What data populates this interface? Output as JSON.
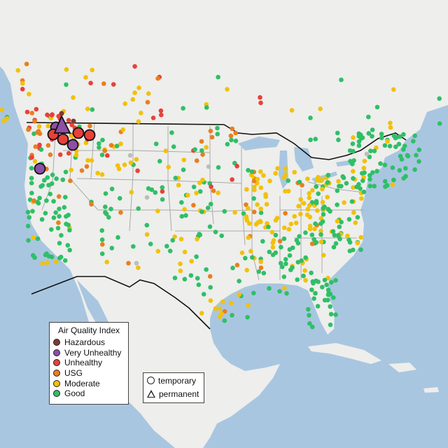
{
  "legend": {
    "title": "Air Quality Index",
    "categories": [
      {
        "label": "Hazardous",
        "color": "#7e3b31"
      },
      {
        "label": "Very Unhealthy",
        "color": "#8e4fa6"
      },
      {
        "label": "Unhealthy",
        "color": "#e8413a"
      },
      {
        "label": "USG",
        "color": "#e87f1e"
      },
      {
        "label": "Moderate",
        "color": "#f2c10a"
      },
      {
        "label": "Good",
        "color": "#2fbf67"
      }
    ]
  },
  "monitor_types": {
    "temporary": "temporary",
    "permanent": "permanent"
  },
  "colors": {
    "water": "#a9c6e0",
    "land": "#eeeeec",
    "state_border": "#a9a9a9",
    "country_border": "#111111"
  }
}
